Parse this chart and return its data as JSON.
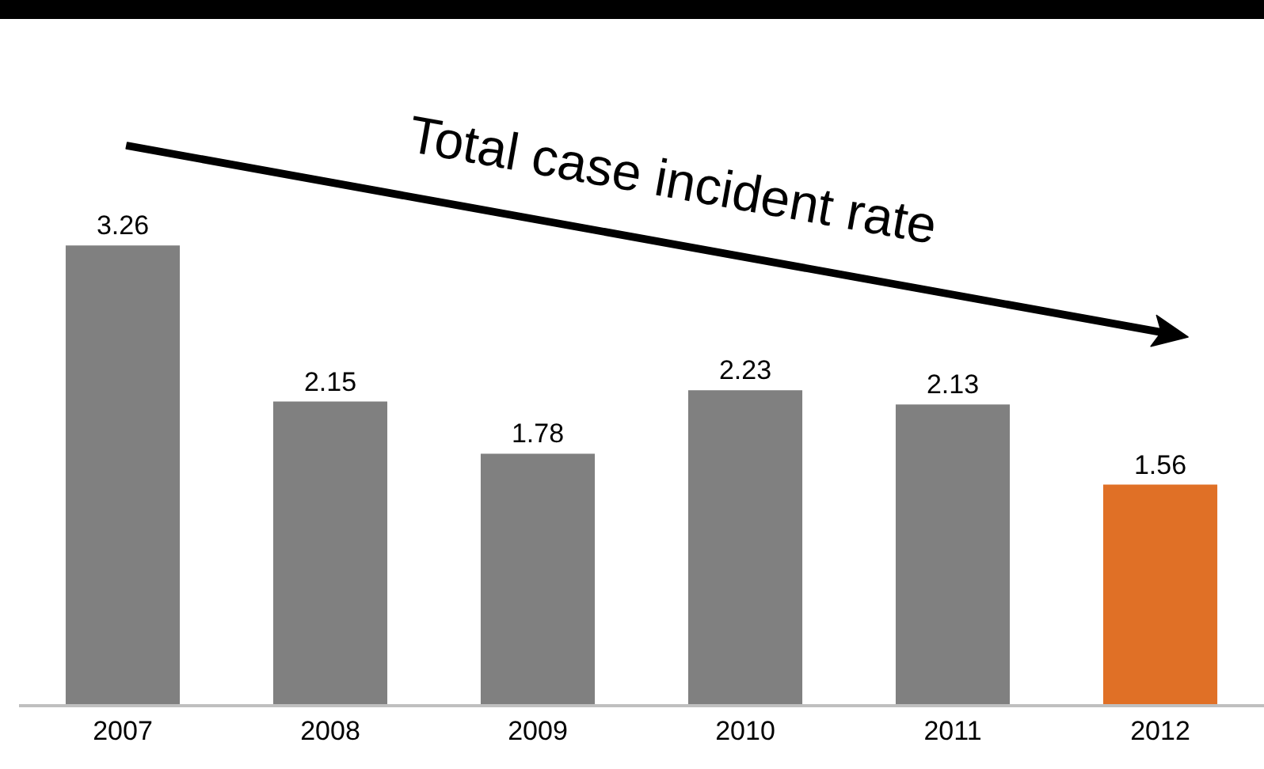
{
  "chart_data": {
    "type": "bar",
    "categories": [
      "2007",
      "2008",
      "2009",
      "2010",
      "2011",
      "2012"
    ],
    "values": [
      3.26,
      2.15,
      1.78,
      2.23,
      2.13,
      1.56
    ],
    "colors": [
      "#808080",
      "#808080",
      "#808080",
      "#808080",
      "#808080",
      "#e07026"
    ],
    "data_labels": true,
    "annotations": [
      "Total case incident rate"
    ]
  }
}
